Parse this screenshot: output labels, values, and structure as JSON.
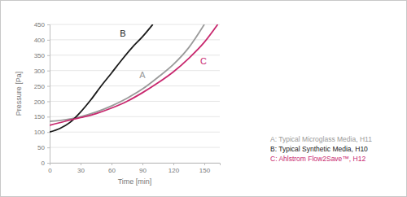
{
  "chart_data": {
    "type": "line",
    "x_label": "Time [min]",
    "y_label": "Pressure [Pa]",
    "xlim": [
      0,
      165
    ],
    "ylim": [
      0,
      450
    ],
    "xticks": [
      0,
      30,
      60,
      90,
      120,
      150
    ],
    "yticks": [
      0,
      50,
      100,
      150,
      200,
      250,
      300,
      350,
      400,
      450
    ],
    "grid": true,
    "legend": "lower right",
    "series": [
      {
        "name": "A: Typical Microglass Media, H11",
        "color": "#9a9a9a",
        "x": [
          0,
          15,
          30,
          45,
          60,
          75,
          90,
          105,
          120,
          135,
          150
        ],
        "values": [
          135,
          140,
          150,
          165,
          185,
          210,
          240,
          278,
          320,
          375,
          450
        ]
      },
      {
        "name": "B: Typical Synthetic Media, H10",
        "color": "#1a1a1a",
        "x": [
          0,
          10,
          20,
          30,
          40,
          50,
          60,
          70,
          80,
          90,
          100
        ],
        "values": [
          100,
          112,
          132,
          165,
          205,
          250,
          292,
          335,
          375,
          410,
          450
        ]
      },
      {
        "name": "C: Ahlstrom Flow2Save™, H12",
        "color": "#c8286e",
        "x": [
          0,
          15,
          30,
          45,
          60,
          75,
          90,
          105,
          120,
          135,
          150,
          163
        ],
        "values": [
          122,
          135,
          147,
          160,
          178,
          200,
          228,
          260,
          296,
          340,
          392,
          450
        ]
      }
    ],
    "annotations": [
      {
        "text": "A",
        "x": 87,
        "y": 275,
        "color": "#9a9a9a"
      },
      {
        "text": "B",
        "x": 68,
        "y": 410,
        "color": "#1a1a1a"
      },
      {
        "text": "C",
        "x": 146,
        "y": 320,
        "color": "#c8286e"
      }
    ]
  }
}
